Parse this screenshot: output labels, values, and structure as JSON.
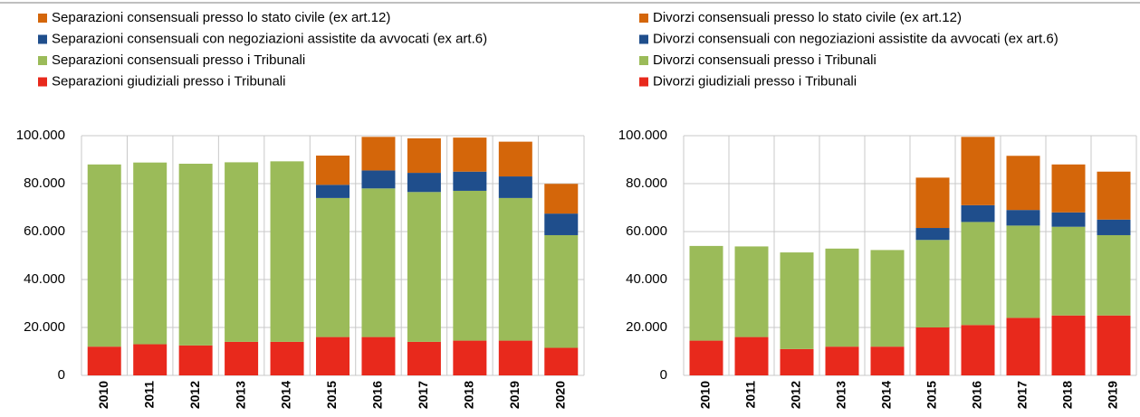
{
  "chart_data": [
    {
      "type": "bar",
      "stacked": true,
      "categories": [
        "2010",
        "2011",
        "2012",
        "2013",
        "2014",
        "2015",
        "2016",
        "2017",
        "2018",
        "2019",
        "2020"
      ],
      "series": [
        {
          "name": "Separazioni consensuali presso lo stato civile (ex art.12)",
          "color": "#d4660a",
          "values": [
            null,
            null,
            null,
            null,
            null,
            12200,
            14000,
            14400,
            14200,
            14500,
            12400
          ]
        },
        {
          "name": "Separazioni consensuali con negoziazioni assistite da avvocati (ex art.6)",
          "color": "#1f4e8c",
          "values": [
            null,
            null,
            null,
            null,
            null,
            5500,
            7500,
            8000,
            8000,
            9000,
            9000
          ]
        },
        {
          "name": "Separazioni consensuali presso i Tribunali",
          "color": "#9bbb59",
          "values": [
            76000,
            75800,
            75800,
            74900,
            75300,
            58000,
            62000,
            62500,
            62500,
            59500,
            47000
          ]
        },
        {
          "name": "Separazioni giudiziali presso i Tribunali",
          "color": "#e8291c",
          "values": [
            12000,
            13000,
            12500,
            14000,
            14000,
            16000,
            16000,
            14000,
            14500,
            14500,
            11500
          ]
        }
      ],
      "ylim": [
        0,
        100000
      ],
      "yticks": [
        0,
        {
          "value": 20000,
          "label": "20.000"
        },
        {
          "value": 40000,
          "label": "40.000"
        },
        {
          "value": 60000,
          "label": "60.000"
        },
        {
          "value": 80000,
          "label": "80.000"
        },
        {
          "value": 100000,
          "label": "100.000"
        }
      ],
      "grid": true
    },
    {
      "type": "bar",
      "stacked": true,
      "categories": [
        "2010",
        "2011",
        "2012",
        "2013",
        "2014",
        "2015",
        "2016",
        "2017",
        "2018",
        "2019"
      ],
      "series": [
        {
          "name": "Divorzi  consensuali presso lo stato civile (ex art.12)",
          "color": "#d4660a",
          "values": [
            null,
            null,
            null,
            null,
            null,
            21000,
            28500,
            22600,
            20000,
            20000
          ]
        },
        {
          "name": "Divorzi  consensuali con negoziazioni assistite da avvocati (ex art.6)",
          "color": "#1f4e8c",
          "values": [
            null,
            null,
            null,
            null,
            null,
            5000,
            7000,
            6500,
            6000,
            6500
          ]
        },
        {
          "name": "Divorzi  consensuali presso i Tribunali",
          "color": "#9bbb59",
          "values": [
            39500,
            37800,
            40300,
            40900,
            40300,
            36500,
            43000,
            38500,
            37000,
            33500
          ]
        },
        {
          "name": "Divorzi giudiziali presso i Tribunali",
          "color": "#e8291c",
          "values": [
            14500,
            16000,
            11000,
            12000,
            12000,
            20000,
            21000,
            24000,
            25000,
            25000
          ]
        }
      ],
      "ylim": [
        0,
        100000
      ],
      "yticks": [
        0,
        {
          "value": 20000,
          "label": "20.000"
        },
        {
          "value": 40000,
          "label": "40.000"
        },
        {
          "value": 60000,
          "label": "60.000"
        },
        {
          "value": 80000,
          "label": "80.000"
        },
        {
          "value": 100000,
          "label": "100.000"
        }
      ],
      "grid": true
    }
  ]
}
